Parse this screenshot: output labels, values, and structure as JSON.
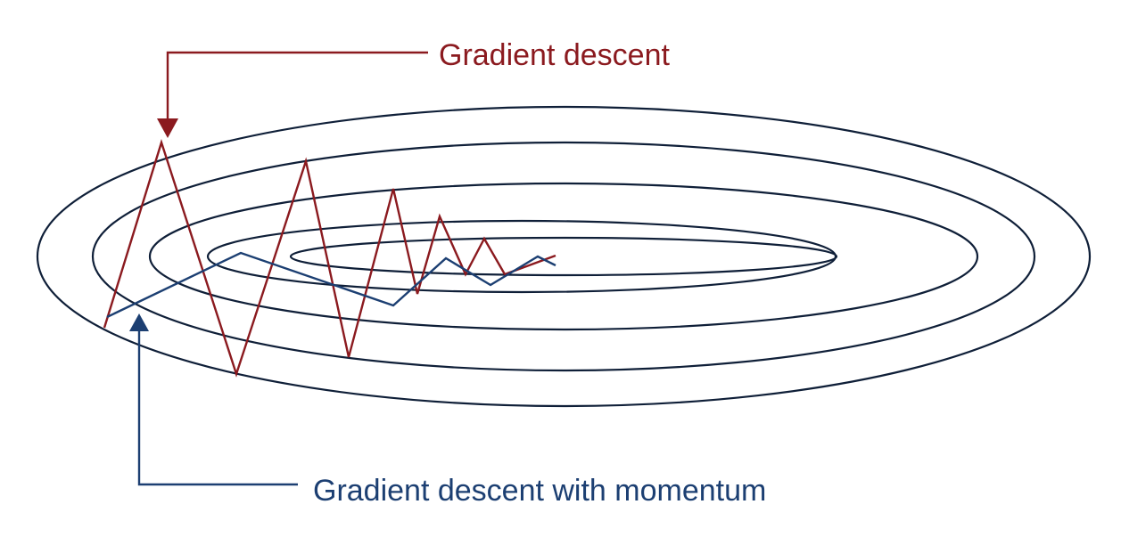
{
  "labels": {
    "gradient_descent": "Gradient descent",
    "gradient_descent_momentum": "Gradient descent with momentum"
  },
  "colors": {
    "gradient_descent": "#8b1a1f",
    "momentum": "#1c3f72",
    "contour": "#0f1f38"
  }
}
